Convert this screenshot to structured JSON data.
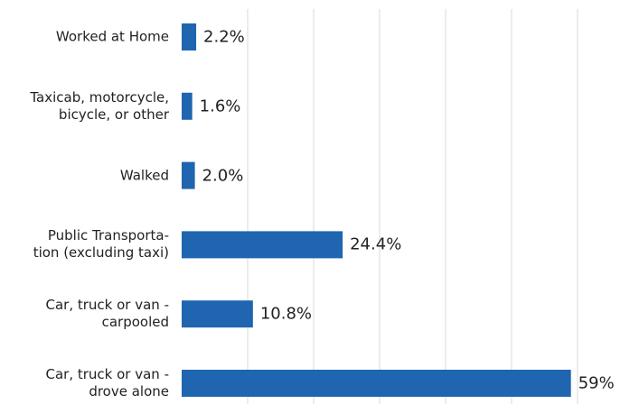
{
  "chart_data": {
    "type": "barh",
    "categories": [
      "Worked at Home",
      "Taxicab, motorcycle,\nbicycle, or other",
      "Walked",
      "Public Transporta-\ntion (excluding taxi)",
      "Car, truck or van -\ncarpooled",
      "Car, truck or van -\ndrove alone"
    ],
    "values": [
      2.2,
      1.6,
      2.0,
      24.4,
      10.8,
      59
    ],
    "value_labels": [
      "2.2%",
      "1.6%",
      "2.0%",
      "24.4%",
      "10.8%",
      "59%"
    ],
    "color": "#1f65b0",
    "xlim": [
      0,
      60
    ],
    "xticks": [
      10,
      20,
      30,
      40,
      50,
      60
    ],
    "grid": true
  }
}
